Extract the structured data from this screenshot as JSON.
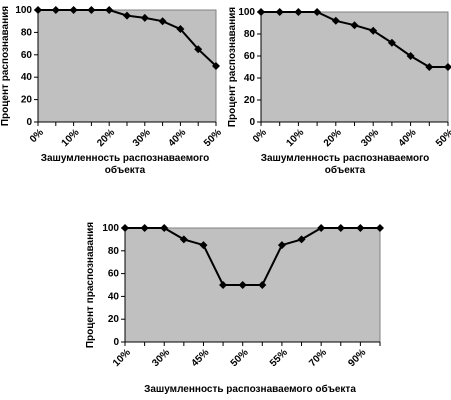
{
  "chart_data": [
    {
      "type": "line",
      "y_label": "Процент распознавания",
      "x_label": "Зашумленность распознаваемого объекта",
      "categories": [
        "0%",
        null,
        "10%",
        null,
        "20%",
        null,
        "30%",
        null,
        "40%",
        null,
        "50%"
      ],
      "values": [
        100,
        100,
        100,
        100,
        100,
        95,
        93,
        90,
        83,
        65,
        50
      ],
      "color": "#000000",
      "background": "#c0c0c0",
      "ylim": [
        0,
        100
      ],
      "yticks": [
        0,
        20,
        40,
        60,
        80,
        100
      ]
    },
    {
      "type": "line",
      "y_label": "Процент распознавания",
      "x_label": "Зашумленность распознаваемого объекта",
      "categories": [
        "0%",
        null,
        "10%",
        null,
        "20%",
        null,
        "30%",
        null,
        "40%",
        null,
        "50%"
      ],
      "values": [
        100,
        100,
        100,
        100,
        92,
        88,
        83,
        72,
        60,
        50,
        50
      ],
      "color": "#000000",
      "background": "#c0c0c0",
      "ylim": [
        0,
        100
      ],
      "yticks": [
        0,
        20,
        40,
        60,
        80,
        100
      ]
    },
    {
      "type": "line",
      "y_label": "Процент праспознавания",
      "x_label": "Зашумленность распознаваемого объекта",
      "categories": [
        "10%",
        null,
        "30%",
        null,
        "45%",
        null,
        "50%",
        null,
        "55%",
        null,
        "70%",
        null,
        "90%",
        null
      ],
      "values": [
        100,
        100,
        100,
        90,
        85,
        50,
        50,
        50,
        85,
        90,
        100,
        100,
        100,
        100
      ],
      "color": "#000000",
      "background": "#c0c0c0",
      "ylim": [
        0,
        100
      ],
      "yticks": [
        0,
        20,
        40,
        60,
        80,
        100
      ]
    }
  ]
}
